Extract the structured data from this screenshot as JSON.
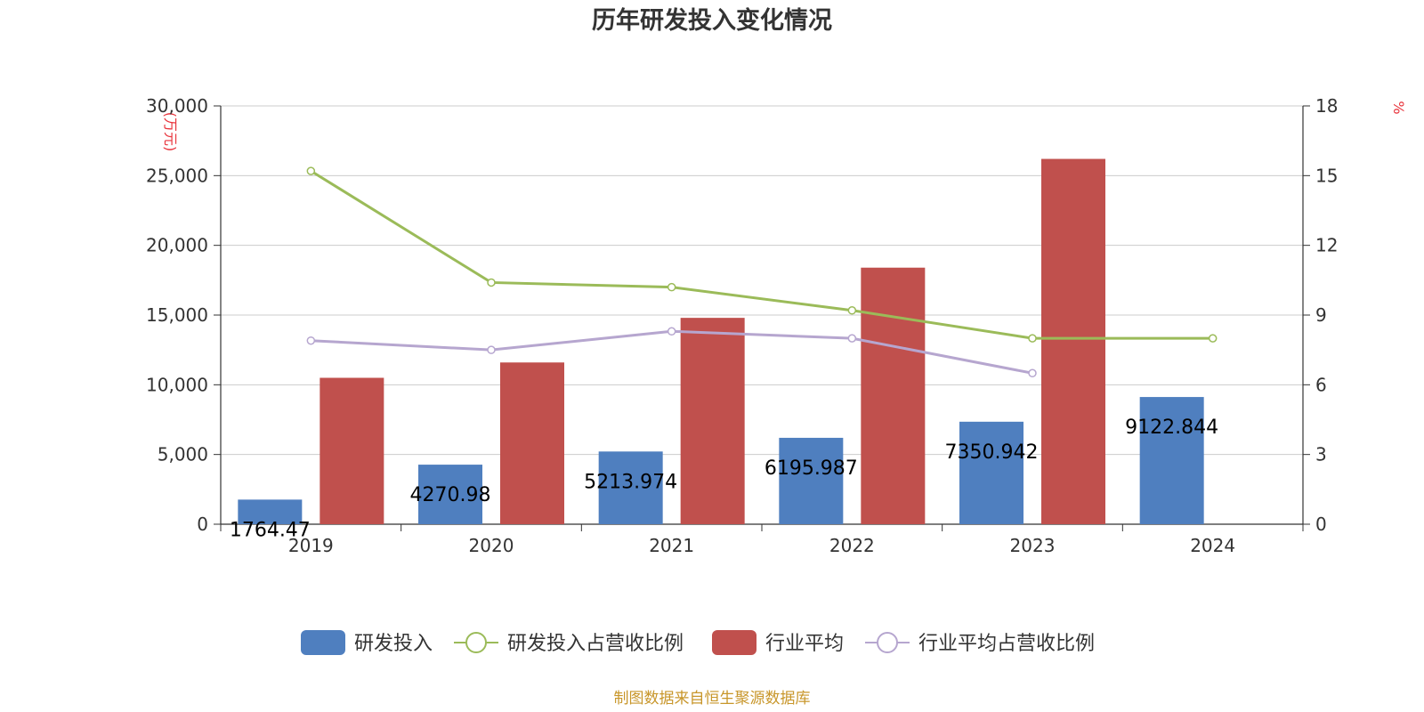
{
  "chart_data": {
    "type": "bar",
    "title": "历年研发投入变化情况",
    "y_left_unit": "(万元)",
    "y_right_unit": "%",
    "categories": [
      "2019",
      "2020",
      "2021",
      "2022",
      "2023",
      "2024"
    ],
    "y_left": {
      "min": 0,
      "max": 30000,
      "ticks": [
        "0",
        "5,000",
        "10,000",
        "15,000",
        "20,000",
        "25,000",
        "30,000"
      ]
    },
    "y_right": {
      "min": 0,
      "max": 18,
      "ticks": [
        "0",
        "3",
        "6",
        "9",
        "12",
        "15",
        "18"
      ]
    },
    "series": [
      {
        "name": "研发投入",
        "kind": "bar",
        "axis": "left",
        "color": "#4f7fbf",
        "values": [
          1764.47,
          4270.98,
          5213.974,
          6195.987,
          7350.942,
          9122.844
        ],
        "labels": [
          "1764.47",
          "4270.98",
          "5213.974",
          "6195.987",
          "7350.942",
          "9122.844"
        ]
      },
      {
        "name": "研发投入占营收比例",
        "kind": "line",
        "axis": "right",
        "color": "#9bbb59",
        "values": [
          15.2,
          10.4,
          10.2,
          9.2,
          8.0,
          8.0
        ]
      },
      {
        "name": "行业平均",
        "kind": "bar",
        "axis": "left",
        "color": "#c0504d",
        "values": [
          10500,
          11600,
          14800,
          18400,
          26200,
          null
        ]
      },
      {
        "name": "行业平均占营收比例",
        "kind": "line",
        "axis": "right",
        "color": "#b6a6cf",
        "values": [
          7.9,
          7.5,
          8.3,
          8.0,
          6.5,
          null
        ]
      }
    ],
    "grid": true,
    "legend_position": "bottom"
  },
  "footer": {
    "source": "制图数据来自恒生聚源数据库"
  }
}
